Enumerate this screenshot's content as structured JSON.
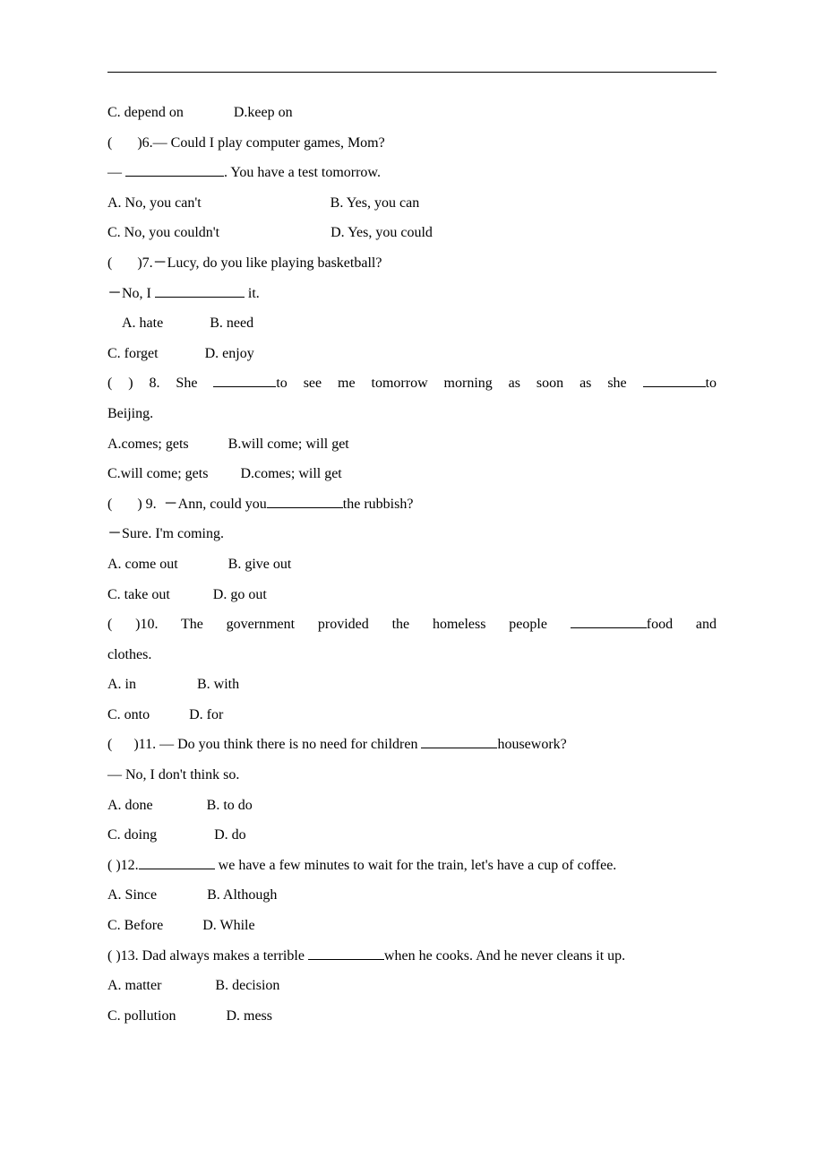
{
  "q5": {
    "optC": "C. depend on",
    "optD": "D.keep on"
  },
  "q6": {
    "num": "(       )6.",
    "prompt1": "— Could I play computer games, Mom?",
    "prompt2_prefix": "— ",
    "prompt2_suffix": ". You have a test tomorrow.",
    "optA": "A. No, you can't",
    "optB": "B. Yes, you can",
    "optC": "C. No, you couldn't",
    "optD": "D. Yes, you could"
  },
  "q7": {
    "num": "(       )7.",
    "prompt1": "－Lucy, do you like playing basketball?",
    "prompt2_prefix": "－No, I ",
    "prompt2_suffix": " it.",
    "optA": "A. hate",
    "optB": "B. need",
    "optC": "C. forget",
    "optD": "D. enjoy"
  },
  "q8": {
    "num": "(        ) 8.",
    "part1": " She ",
    "part2": "to see me tomorrow morning as soon as she ",
    "part3": "to Beijing.",
    "optA": "A.comes; gets",
    "optB": "B.will come; will get",
    "optC": "C.will come; gets",
    "optD": "D.comes; will get"
  },
  "q9": {
    "num": "(       ) 9. ",
    "prompt1_prefix": " －Ann, could you",
    "prompt1_suffix": "the rubbish?",
    "prompt2": "－Sure. I'm coming.",
    "optA": "A. come out",
    "optB": "B. give out",
    "optC": "C. take out",
    "optD": "D. go out"
  },
  "q10": {
    "num": "(          )10.",
    "part1": " The government provided the homeless people ",
    "part2": "food and clothes.",
    "optA": "A. in",
    "optB": "B. with",
    "optC": "C. onto",
    "optD": "D. for"
  },
  "q11": {
    "num": "(      )11.",
    "prompt1_prefix": " — Do you think there is no need for children ",
    "prompt1_suffix": "housework?",
    "prompt2": "— No, I don't think so.",
    "optA": "A. done",
    "optB": "B. to do",
    "optC": "C. doing",
    "optD": "D. do"
  },
  "q12": {
    "num": "(       )12.",
    "part1": " we have a few minutes to wait for the train, let's have a cup of coffee.",
    "optA": "A. Since",
    "optB": "B. Although",
    "optC": "C. Before",
    "optD": "D. While"
  },
  "q13": {
    "num": "(      )13.",
    "prompt_prefix": " Dad always makes a terrible ",
    "prompt_suffix": "when he cooks. And he never cleans it up.",
    "optA": "A. matter",
    "optB": "B. decision",
    "optC": "C. pollution",
    "optD": "D. mess"
  }
}
